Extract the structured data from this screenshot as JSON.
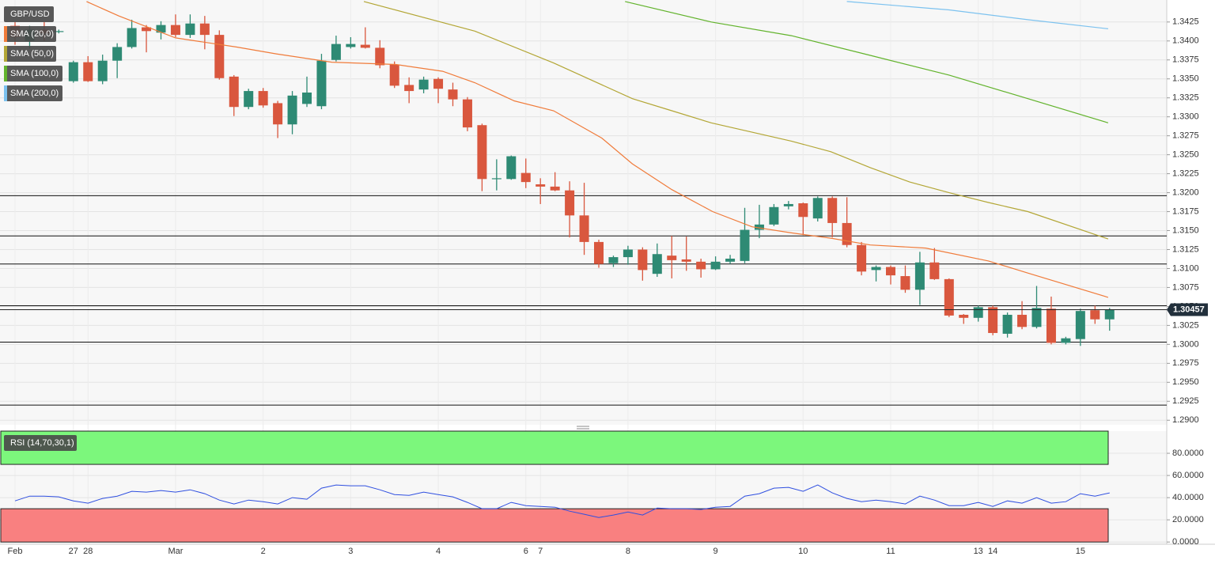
{
  "chart_data": [
    {
      "type": "candlestick",
      "title": "GBP/USD",
      "categories": [
        "Feb",
        null,
        null,
        null,
        "27",
        "28",
        null,
        null,
        null,
        null,
        null,
        "Mar",
        null,
        null,
        null,
        null,
        null,
        "2",
        null,
        null,
        null,
        null,
        null,
        "3",
        null,
        null,
        null,
        null,
        null,
        "4",
        null,
        null,
        null,
        null,
        null,
        "6",
        "7",
        null,
        null,
        null,
        null,
        null,
        "8",
        null,
        null,
        null,
        null,
        null,
        "9",
        null,
        null,
        null,
        null,
        null,
        "10",
        null,
        null,
        null,
        null,
        null,
        "11",
        null,
        null,
        null,
        null,
        null,
        "13",
        "14",
        null,
        null,
        null,
        null,
        null,
        "15",
        null,
        null
      ],
      "open": [
        1.342,
        1.34,
        1.3415,
        1.3412,
        1.3347,
        1.3372,
        1.3347,
        1.3374,
        1.3392,
        1.3418,
        1.3411,
        1.3421,
        1.3408,
        1.3423,
        1.3408,
        1.3353,
        1.3313,
        1.3334,
        1.3318,
        1.329,
        1.3317,
        1.3314,
        1.3375,
        1.3392,
        1.3395,
        1.3391,
        1.3369,
        1.3342,
        1.3336,
        1.335,
        1.3336,
        1.3323,
        1.3289,
        1.3219,
        1.3218,
        1.3226,
        1.3211,
        1.3208,
        1.3203,
        1.317,
        1.3135,
        1.3107,
        1.3115,
        1.3125,
        1.3093,
        1.3117,
        1.3112,
        1.3109,
        1.3099,
        1.3109,
        1.311,
        1.3151,
        1.3158,
        1.3182,
        1.3186,
        1.3166,
        1.3193,
        1.316,
        1.3131,
        1.3098,
        1.3102,
        1.309,
        1.3072,
        1.3108,
        1.3086,
        1.3039,
        1.3035,
        1.3049,
        1.3014,
        1.3039,
        1.3023,
        1.3047,
        1.3002,
        1.3007,
        1.3045,
        1.3033
      ],
      "high": [
        1.3425,
        1.342,
        1.3425,
        1.3415,
        1.3374,
        1.338,
        1.3382,
        1.3397,
        1.3428,
        1.3421,
        1.3426,
        1.3435,
        1.3435,
        1.3433,
        1.3414,
        1.3355,
        1.3337,
        1.3338,
        1.3321,
        1.3334,
        1.3353,
        1.3383,
        1.3407,
        1.3405,
        1.3418,
        1.3401,
        1.3373,
        1.3352,
        1.3353,
        1.3352,
        1.3345,
        1.3326,
        1.3291,
        1.3244,
        1.3249,
        1.3245,
        1.3219,
        1.3227,
        1.3215,
        1.3213,
        1.3138,
        1.3117,
        1.313,
        1.3128,
        1.3133,
        1.3143,
        1.3142,
        1.3113,
        1.3116,
        1.3118,
        1.318,
        1.3184,
        1.3185,
        1.3189,
        1.3187,
        1.3195,
        1.3195,
        1.3194,
        1.3135,
        1.3104,
        1.3104,
        1.3104,
        1.3122,
        1.3127,
        1.3087,
        1.304,
        1.3051,
        1.3051,
        1.3042,
        1.3057,
        1.3077,
        1.3063,
        1.301,
        1.3047,
        1.3051,
        1.3048
      ],
      "low": [
        1.3395,
        1.339,
        1.34,
        1.341,
        1.3345,
        1.3346,
        1.3343,
        1.3351,
        1.339,
        1.3385,
        1.3402,
        1.3405,
        1.3404,
        1.3389,
        1.3349,
        1.3301,
        1.331,
        1.3312,
        1.3272,
        1.3277,
        1.3313,
        1.331,
        1.3373,
        1.339,
        1.339,
        1.3364,
        1.3338,
        1.3318,
        1.3331,
        1.3318,
        1.3314,
        1.3281,
        1.3202,
        1.3203,
        1.3217,
        1.3206,
        1.3185,
        1.3202,
        1.3141,
        1.3118,
        1.3101,
        1.3102,
        1.3105,
        1.3084,
        1.3089,
        1.3087,
        1.3097,
        1.3088,
        1.3098,
        1.3106,
        1.3107,
        1.314,
        1.3156,
        1.3178,
        1.3144,
        1.3162,
        1.3141,
        1.3128,
        1.3091,
        1.3083,
        1.3079,
        1.3068,
        1.3052,
        1.3085,
        1.3036,
        1.3027,
        1.303,
        1.3012,
        1.3009,
        1.302,
        1.3021,
        1.3,
        1.3,
        1.2998,
        1.3027,
        1.3018
      ],
      "close": [
        1.3405,
        1.3415,
        1.341,
        1.3413,
        1.3372,
        1.3347,
        1.3374,
        1.3392,
        1.3417,
        1.3413,
        1.3421,
        1.3408,
        1.3423,
        1.3408,
        1.3351,
        1.3313,
        1.3334,
        1.3315,
        1.329,
        1.3328,
        1.3332,
        1.3374,
        1.3396,
        1.3396,
        1.3391,
        1.3368,
        1.3341,
        1.3334,
        1.3349,
        1.3337,
        1.3323,
        1.3286,
        1.3218,
        1.3219,
        1.3248,
        1.3214,
        1.3208,
        1.3203,
        1.317,
        1.3135,
        1.3106,
        1.3115,
        1.3125,
        1.3098,
        1.3119,
        1.3111,
        1.3109,
        1.3099,
        1.3109,
        1.3113,
        1.3151,
        1.3158,
        1.3181,
        1.3185,
        1.3168,
        1.3193,
        1.316,
        1.3131,
        1.3096,
        1.3102,
        1.3091,
        1.3072,
        1.3108,
        1.3086,
        1.3038,
        1.3035,
        1.3049,
        1.3015,
        1.3039,
        1.3023,
        1.3048,
        1.3002,
        1.3008,
        1.3044,
        1.3033,
        1.3046
      ],
      "up_color": "#2e8a74",
      "down_color": "#d9573e",
      "series": [
        {
          "name": "SMA (20,0)",
          "color": "#f07b3a",
          "x": [
            4.9,
            7.1,
            11,
            15.2,
            17.9,
            21.7,
            26.1,
            29.3,
            31.5,
            34.2,
            36.9,
            40.2,
            42.3,
            45,
            47.8,
            50.5,
            53.2,
            55.9,
            58.6,
            62.4,
            66.7,
            69.4,
            74.9
          ],
          "values": [
            1.3452,
            1.3433,
            1.3404,
            1.3392,
            1.3383,
            1.3372,
            1.3369,
            1.336,
            1.3345,
            1.3321,
            1.3308,
            1.3272,
            1.3238,
            1.3204,
            1.3175,
            1.3155,
            1.3147,
            1.314,
            1.3131,
            1.3127,
            1.311,
            1.3094,
            1.3062
          ]
        },
        {
          "name": "SMA (50,0)",
          "color": "#b3a635",
          "x": [
            23.9,
            31.5,
            36.9,
            42.3,
            45,
            47.7,
            53.2,
            55.9,
            58.6,
            61.3,
            64,
            66.7,
            69.4,
            74.9
          ],
          "values": [
            1.3452,
            1.3413,
            1.3371,
            1.3324,
            1.3308,
            1.3292,
            1.3268,
            1.3254,
            1.3233,
            1.3214,
            1.32,
            1.3187,
            1.3175,
            1.3139
          ]
        },
        {
          "name": "SMA (100,0)",
          "color": "#62b32c",
          "x": [
            41.8,
            47.7,
            53.2,
            58.6,
            64,
            69.4,
            74.9
          ],
          "values": [
            1.3452,
            1.3425,
            1.3407,
            1.3381,
            1.3355,
            1.3324,
            1.3292
          ]
        },
        {
          "name": "SMA (200,0)",
          "color": "#7cc2ef",
          "x": [
            57,
            64,
            69.4,
            74.9
          ],
          "values": [
            1.3452,
            1.3441,
            1.3428,
            1.3416
          ]
        }
      ],
      "hlines": [
        1.3196,
        1.3143,
        1.3106,
        1.3051,
        1.3003,
        1.292
      ],
      "last_price": 1.30457,
      "ylim": [
        1.2894,
        1.3454
      ],
      "yticks": [
        {
          "value": 1.29,
          "label": "1.2900"
        },
        {
          "value": 1.2925,
          "label": "1.2925"
        },
        {
          "value": 1.295,
          "label": "1.2950"
        },
        {
          "value": 1.2975,
          "label": "1.2975"
        },
        {
          "value": 1.3,
          "label": "1.3000"
        },
        {
          "value": 1.3025,
          "label": "1.3025"
        },
        {
          "value": 1.305,
          "label": "1.3050"
        },
        {
          "value": 1.3075,
          "label": "1.3075"
        },
        {
          "value": 1.31,
          "label": "1.3100"
        },
        {
          "value": 1.3125,
          "label": "1.3125"
        },
        {
          "value": 1.315,
          "label": "1.3150"
        },
        {
          "value": 1.3175,
          "label": "1.3175"
        },
        {
          "value": 1.32,
          "label": "1.3200"
        },
        {
          "value": 1.3225,
          "label": "1.3225"
        },
        {
          "value": 1.325,
          "label": "1.3250"
        },
        {
          "value": 1.3275,
          "label": "1.3275"
        },
        {
          "value": 1.33,
          "label": "1.3300"
        },
        {
          "value": 1.3325,
          "label": "1.3325"
        },
        {
          "value": 1.335,
          "label": "1.3350"
        },
        {
          "value": 1.3375,
          "label": "1.3375"
        },
        {
          "value": 1.34,
          "label": "1.3400"
        },
        {
          "value": 1.3425,
          "label": "1.3425"
        }
      ],
      "grid": true
    },
    {
      "type": "line",
      "title": "RSI (14,70,30,1)",
      "color": "#2f4fe0",
      "values": [
        37.1,
        41.4,
        41.4,
        40.7,
        37.1,
        35.0,
        39.3,
        41.4,
        45.7,
        45.0,
        46.4,
        45.0,
        47.1,
        43.6,
        37.8,
        34.3,
        37.8,
        36.4,
        34.3,
        40.0,
        38.6,
        48.6,
        51.4,
        50.7,
        50.7,
        47.1,
        42.8,
        42.1,
        45.0,
        42.8,
        40.7,
        35.7,
        30.0,
        30.0,
        35.7,
        32.8,
        32.1,
        31.4,
        27.8,
        25.0,
        22.1,
        24.3,
        27.1,
        24.3,
        30.7,
        30.0,
        30.0,
        29.3,
        31.4,
        32.1,
        41.4,
        43.6,
        48.6,
        49.3,
        45.7,
        51.4,
        44.3,
        39.3,
        36.4,
        37.8,
        36.4,
        34.3,
        41.4,
        37.8,
        32.8,
        32.8,
        35.7,
        32.1,
        37.1,
        35.0,
        40.0,
        35.0,
        36.4,
        43.6,
        41.4,
        44.3
      ],
      "bands": [
        {
          "from": 70,
          "to": 100,
          "color": "#7cf77c"
        },
        {
          "from": 0,
          "to": 30,
          "color": "#f98080"
        }
      ],
      "ylim": [
        -2,
        100
      ],
      "yticks": [
        {
          "value": 0,
          "label": "0.0000"
        },
        {
          "value": 20,
          "label": "20.0000"
        },
        {
          "value": 40,
          "label": "40.0000"
        },
        {
          "value": 60,
          "label": "60.0000"
        },
        {
          "value": 80,
          "label": "80.0000"
        }
      ],
      "grid": true
    }
  ]
}
